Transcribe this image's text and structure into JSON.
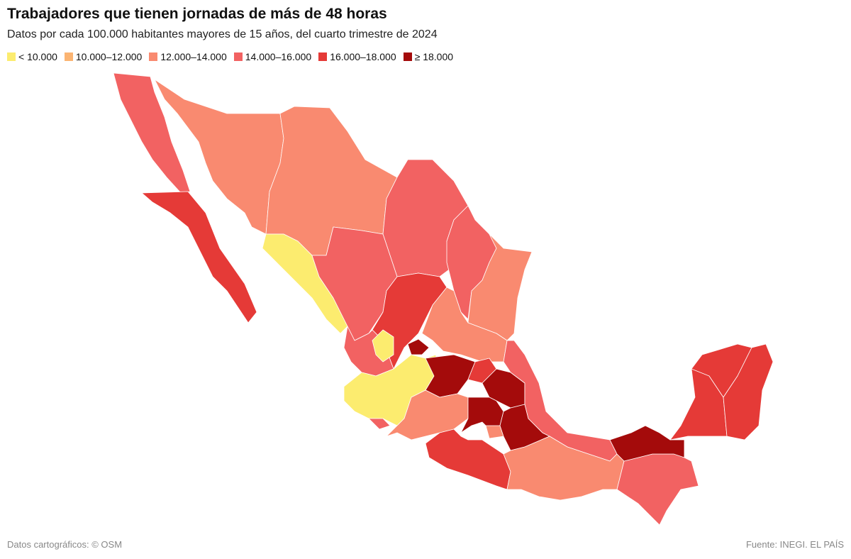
{
  "header": {
    "title": "Trabajadores que tienen jornadas de más de 48 horas",
    "subtitle": "Datos por cada 100.000 habitantes mayores de 15 años, del cuarto trimestre de 2024"
  },
  "legend": [
    {
      "label": "< 10.000",
      "color": "#fcec6f"
    },
    {
      "label": "10.000–12.000",
      "color": "#fbb472"
    },
    {
      "label": "12.000–14.000",
      "color": "#f98a70"
    },
    {
      "label": "14.000–16.000",
      "color": "#f26262"
    },
    {
      "label": "16.000–18.000",
      "color": "#e53a37"
    },
    {
      "label": "≥ 18.000",
      "color": "#a40b0b"
    }
  ],
  "footer": {
    "map_credit": "Datos cartográficos: © OSM",
    "source": "Fuente: INEGI. EL PAÍS"
  }
}
